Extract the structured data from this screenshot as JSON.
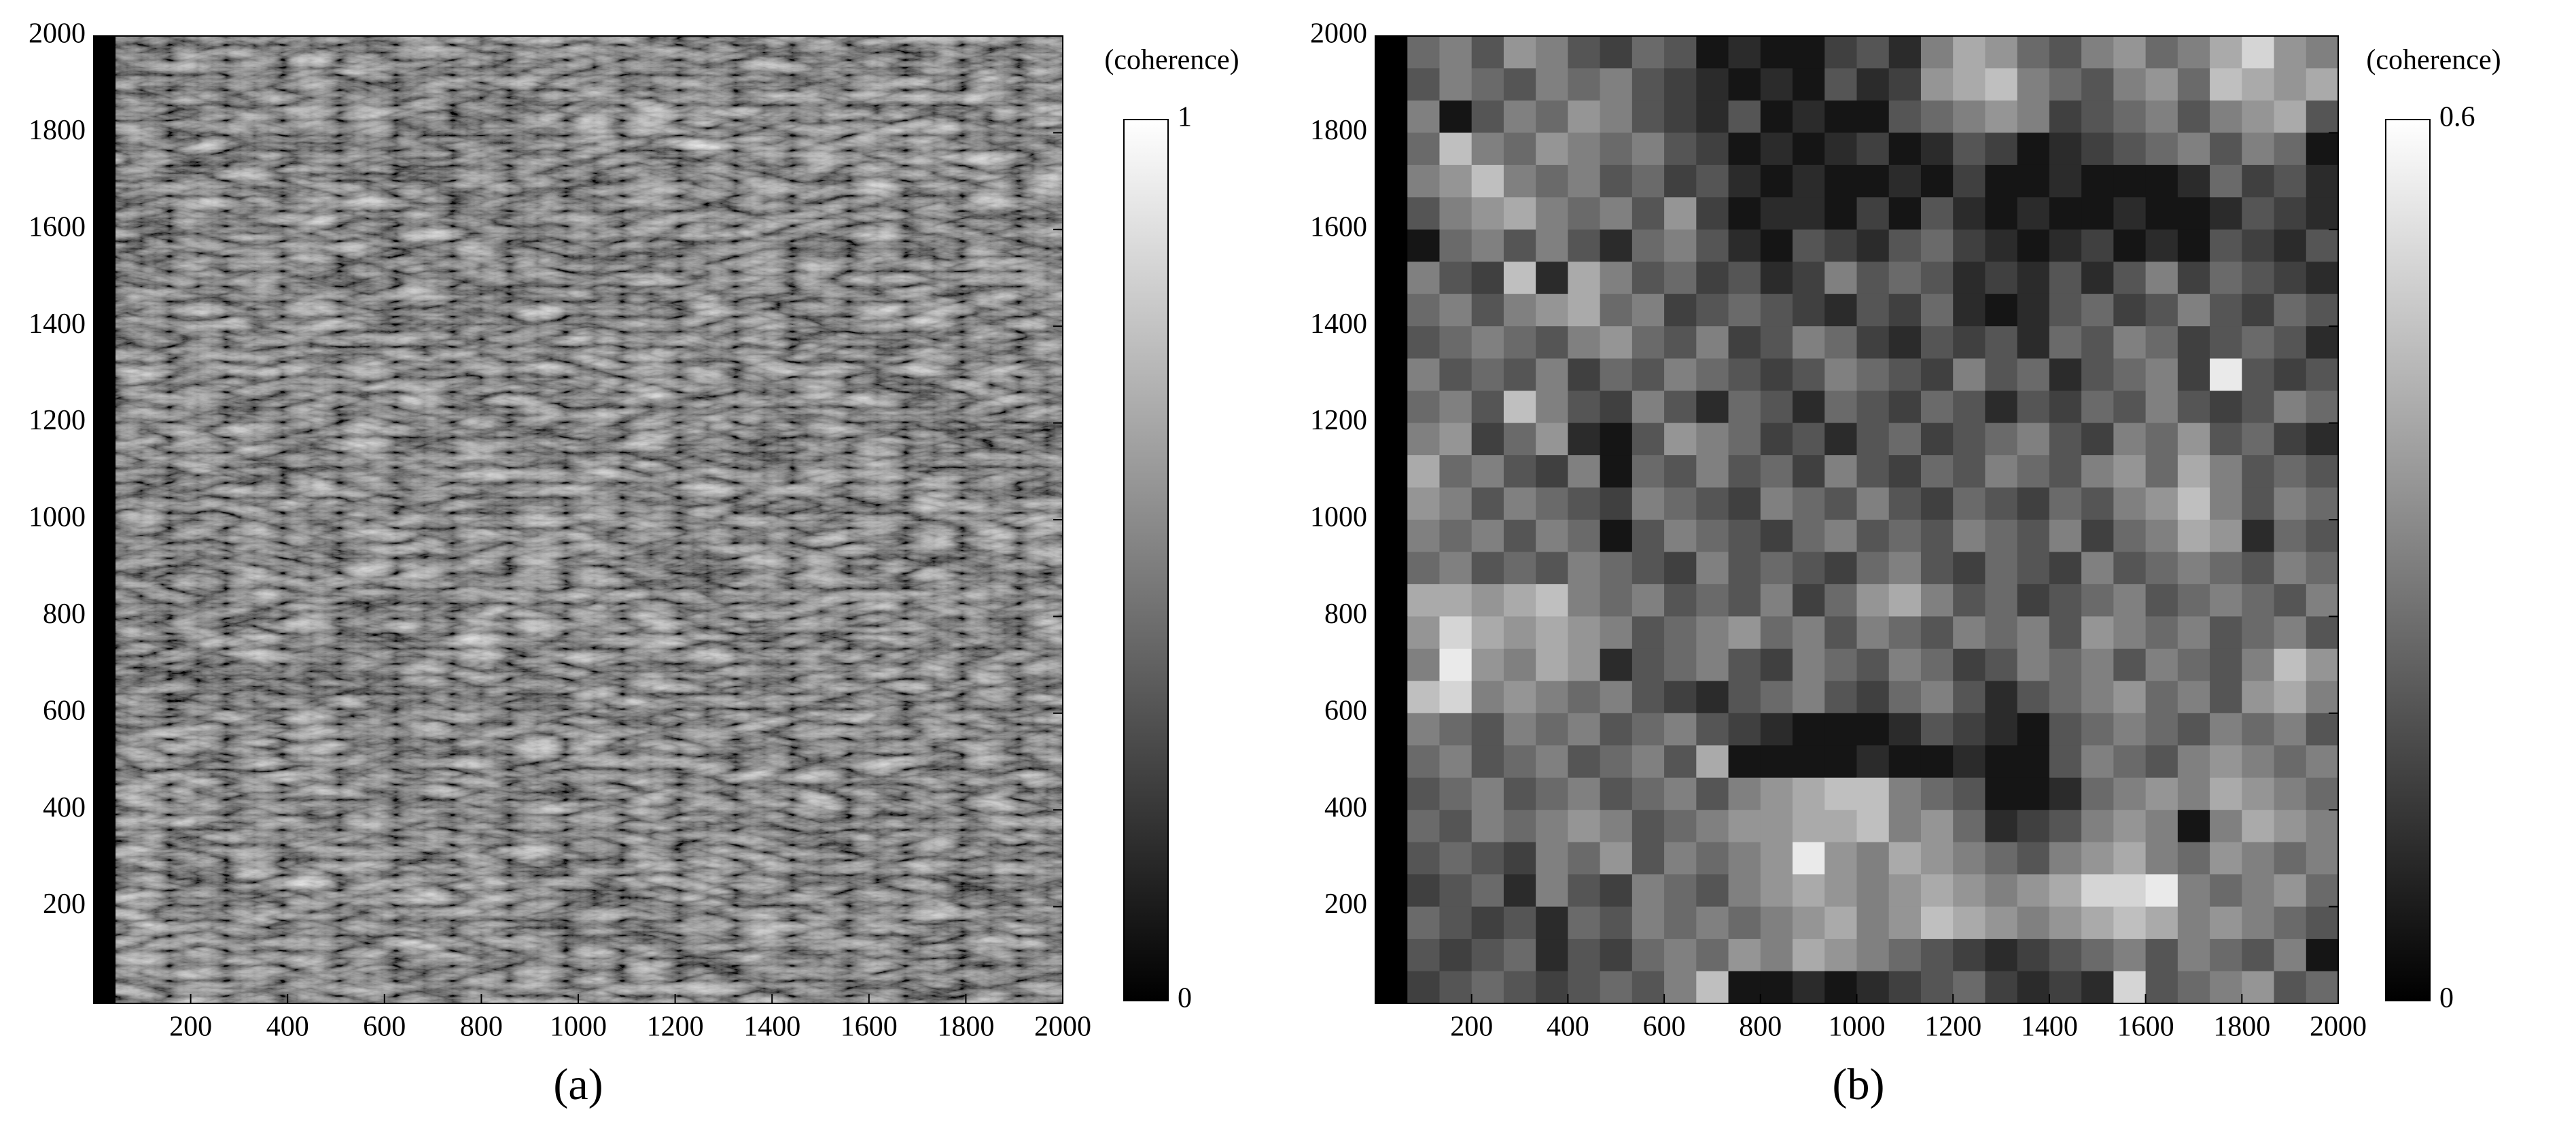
{
  "chart_data": [
    {
      "type": "image",
      "colormap": "gray",
      "colorbar_label": "(coherence)",
      "clim": [
        0,
        1
      ],
      "cticks": [
        0,
        1
      ],
      "xlim": [
        0,
        2000
      ],
      "ylim": [
        0,
        2000
      ],
      "xticks": [
        200,
        400,
        600,
        800,
        1000,
        1200,
        1400,
        1600,
        1800,
        2000
      ],
      "yticks": [
        200,
        400,
        600,
        800,
        1000,
        1200,
        1400,
        1600,
        1800,
        2000
      ],
      "caption": "(a)"
    },
    {
      "type": "heatmap",
      "colormap": "gray",
      "colorbar_label": "(coherence)",
      "clim": [
        0,
        0.6
      ],
      "cticks": [
        0,
        0.6
      ],
      "xlim": [
        0,
        2000
      ],
      "ylim": [
        0,
        2000
      ],
      "xticks": [
        200,
        400,
        600,
        800,
        1000,
        1200,
        1400,
        1600,
        1800,
        2000
      ],
      "yticks": [
        200,
        400,
        600,
        800,
        1000,
        1200,
        1400,
        1600,
        1800,
        2000
      ],
      "caption": "(b)",
      "values": [
        [
          0,
          0.25,
          0.3,
          0.2,
          0.35,
          0.3,
          0.2,
          0.15,
          0.25,
          0.2,
          0.05,
          0.1,
          0.05,
          0.05,
          0.15,
          0.2,
          0.1,
          0.3,
          0.4,
          0.35,
          0.25,
          0.2,
          0.3,
          0.35,
          0.25,
          0.3,
          0.4,
          0.5,
          0.35,
          0.3
        ],
        [
          0,
          0.2,
          0.3,
          0.25,
          0.2,
          0.3,
          0.25,
          0.3,
          0.2,
          0.15,
          0.1,
          0.05,
          0.1,
          0.05,
          0.2,
          0.1,
          0.15,
          0.35,
          0.4,
          0.45,
          0.3,
          0.25,
          0.2,
          0.3,
          0.35,
          0.25,
          0.45,
          0.4,
          0.35,
          0.4
        ],
        [
          0,
          0.3,
          0.05,
          0.2,
          0.3,
          0.25,
          0.35,
          0.3,
          0.2,
          0.15,
          0.1,
          0.2,
          0.05,
          0.1,
          0.05,
          0.05,
          0.2,
          0.25,
          0.3,
          0.35,
          0.3,
          0.15,
          0.2,
          0.25,
          0.3,
          0.2,
          0.3,
          0.35,
          0.4,
          0.2
        ],
        [
          0,
          0.25,
          0.45,
          0.3,
          0.25,
          0.35,
          0.3,
          0.25,
          0.3,
          0.2,
          0.15,
          0.05,
          0.1,
          0.05,
          0.1,
          0.15,
          0.05,
          0.1,
          0.2,
          0.15,
          0.05,
          0.1,
          0.15,
          0.2,
          0.25,
          0.3,
          0.2,
          0.3,
          0.25,
          0.05
        ],
        [
          0,
          0.3,
          0.35,
          0.45,
          0.3,
          0.25,
          0.3,
          0.2,
          0.25,
          0.15,
          0.2,
          0.1,
          0.05,
          0.1,
          0.05,
          0.05,
          0.1,
          0.05,
          0.15,
          0.05,
          0.05,
          0.1,
          0.05,
          0.05,
          0.05,
          0.1,
          0.25,
          0.15,
          0.2,
          0.1
        ],
        [
          0,
          0.2,
          0.3,
          0.35,
          0.4,
          0.3,
          0.25,
          0.3,
          0.2,
          0.35,
          0.15,
          0.05,
          0.1,
          0.1,
          0.05,
          0.15,
          0.05,
          0.2,
          0.1,
          0.05,
          0.1,
          0.05,
          0.05,
          0.1,
          0.05,
          0.05,
          0.1,
          0.2,
          0.15,
          0.1
        ],
        [
          0,
          0.05,
          0.25,
          0.3,
          0.2,
          0.3,
          0.2,
          0.1,
          0.25,
          0.3,
          0.2,
          0.1,
          0.05,
          0.2,
          0.15,
          0.1,
          0.2,
          0.25,
          0.15,
          0.1,
          0.05,
          0.1,
          0.15,
          0.05,
          0.1,
          0.05,
          0.2,
          0.15,
          0.1,
          0.2
        ],
        [
          0,
          0.3,
          0.2,
          0.15,
          0.45,
          0.1,
          0.4,
          0.3,
          0.2,
          0.25,
          0.15,
          0.2,
          0.1,
          0.15,
          0.3,
          0.2,
          0.25,
          0.2,
          0.1,
          0.15,
          0.1,
          0.2,
          0.1,
          0.2,
          0.3,
          0.15,
          0.25,
          0.2,
          0.15,
          0.1
        ],
        [
          0,
          0.25,
          0.3,
          0.2,
          0.3,
          0.35,
          0.4,
          0.25,
          0.3,
          0.15,
          0.2,
          0.25,
          0.2,
          0.15,
          0.1,
          0.2,
          0.15,
          0.25,
          0.1,
          0.05,
          0.1,
          0.2,
          0.25,
          0.15,
          0.2,
          0.3,
          0.2,
          0.15,
          0.25,
          0.2
        ],
        [
          0,
          0.2,
          0.25,
          0.3,
          0.25,
          0.2,
          0.3,
          0.35,
          0.25,
          0.2,
          0.3,
          0.15,
          0.2,
          0.3,
          0.25,
          0.15,
          0.1,
          0.2,
          0.15,
          0.2,
          0.1,
          0.25,
          0.2,
          0.3,
          0.25,
          0.15,
          0.2,
          0.25,
          0.2,
          0.1
        ],
        [
          0,
          0.3,
          0.2,
          0.25,
          0.2,
          0.3,
          0.15,
          0.25,
          0.2,
          0.3,
          0.25,
          0.2,
          0.15,
          0.2,
          0.3,
          0.25,
          0.2,
          0.15,
          0.3,
          0.2,
          0.25,
          0.1,
          0.2,
          0.25,
          0.3,
          0.15,
          0.55,
          0.2,
          0.15,
          0.2
        ],
        [
          0,
          0.25,
          0.3,
          0.2,
          0.45,
          0.3,
          0.2,
          0.15,
          0.3,
          0.2,
          0.1,
          0.25,
          0.2,
          0.1,
          0.25,
          0.2,
          0.15,
          0.25,
          0.2,
          0.1,
          0.2,
          0.15,
          0.25,
          0.2,
          0.3,
          0.2,
          0.15,
          0.2,
          0.3,
          0.25
        ],
        [
          0,
          0.3,
          0.35,
          0.15,
          0.25,
          0.35,
          0.1,
          0.05,
          0.2,
          0.35,
          0.3,
          0.25,
          0.15,
          0.2,
          0.1,
          0.2,
          0.25,
          0.15,
          0.2,
          0.25,
          0.3,
          0.2,
          0.15,
          0.3,
          0.25,
          0.35,
          0.2,
          0.25,
          0.15,
          0.1
        ],
        [
          0,
          0.4,
          0.25,
          0.3,
          0.2,
          0.15,
          0.3,
          0.05,
          0.25,
          0.2,
          0.3,
          0.2,
          0.25,
          0.15,
          0.3,
          0.2,
          0.15,
          0.25,
          0.2,
          0.3,
          0.25,
          0.2,
          0.3,
          0.35,
          0.25,
          0.4,
          0.3,
          0.2,
          0.25,
          0.2
        ],
        [
          0,
          0.35,
          0.3,
          0.2,
          0.3,
          0.25,
          0.2,
          0.15,
          0.3,
          0.25,
          0.2,
          0.15,
          0.3,
          0.25,
          0.2,
          0.3,
          0.2,
          0.15,
          0.25,
          0.2,
          0.15,
          0.25,
          0.2,
          0.3,
          0.35,
          0.45,
          0.3,
          0.2,
          0.3,
          0.25
        ],
        [
          0,
          0.3,
          0.25,
          0.3,
          0.2,
          0.3,
          0.25,
          0.05,
          0.2,
          0.3,
          0.25,
          0.2,
          0.15,
          0.25,
          0.3,
          0.2,
          0.25,
          0.2,
          0.3,
          0.25,
          0.2,
          0.3,
          0.15,
          0.25,
          0.3,
          0.4,
          0.35,
          0.1,
          0.25,
          0.2
        ],
        [
          0,
          0.25,
          0.3,
          0.2,
          0.25,
          0.2,
          0.3,
          0.25,
          0.2,
          0.15,
          0.3,
          0.2,
          0.25,
          0.2,
          0.15,
          0.25,
          0.3,
          0.2,
          0.15,
          0.25,
          0.2,
          0.15,
          0.3,
          0.2,
          0.25,
          0.3,
          0.25,
          0.2,
          0.3,
          0.25
        ],
        [
          0,
          0.4,
          0.4,
          0.35,
          0.4,
          0.45,
          0.3,
          0.25,
          0.3,
          0.2,
          0.25,
          0.2,
          0.3,
          0.15,
          0.25,
          0.35,
          0.4,
          0.3,
          0.2,
          0.25,
          0.15,
          0.2,
          0.25,
          0.3,
          0.2,
          0.25,
          0.3,
          0.25,
          0.2,
          0.3
        ],
        [
          0,
          0.35,
          0.5,
          0.4,
          0.35,
          0.4,
          0.35,
          0.3,
          0.2,
          0.25,
          0.3,
          0.35,
          0.25,
          0.3,
          0.2,
          0.3,
          0.25,
          0.2,
          0.3,
          0.25,
          0.3,
          0.2,
          0.35,
          0.3,
          0.25,
          0.3,
          0.2,
          0.25,
          0.3,
          0.2
        ],
        [
          0,
          0.3,
          0.55,
          0.35,
          0.3,
          0.4,
          0.35,
          0.1,
          0.2,
          0.25,
          0.3,
          0.2,
          0.15,
          0.3,
          0.25,
          0.2,
          0.3,
          0.25,
          0.15,
          0.2,
          0.3,
          0.25,
          0.3,
          0.2,
          0.3,
          0.25,
          0.2,
          0.3,
          0.45,
          0.35
        ],
        [
          0,
          0.45,
          0.5,
          0.3,
          0.35,
          0.3,
          0.25,
          0.3,
          0.2,
          0.15,
          0.1,
          0.2,
          0.25,
          0.3,
          0.2,
          0.15,
          0.25,
          0.3,
          0.2,
          0.1,
          0.2,
          0.25,
          0.3,
          0.35,
          0.25,
          0.3,
          0.2,
          0.35,
          0.4,
          0.3
        ],
        [
          0,
          0.3,
          0.25,
          0.2,
          0.3,
          0.25,
          0.3,
          0.2,
          0.25,
          0.3,
          0.2,
          0.15,
          0.1,
          0.05,
          0.05,
          0.05,
          0.1,
          0.2,
          0.15,
          0.1,
          0.05,
          0.2,
          0.25,
          0.3,
          0.25,
          0.2,
          0.3,
          0.25,
          0.3,
          0.2
        ],
        [
          0,
          0.25,
          0.3,
          0.2,
          0.25,
          0.3,
          0.2,
          0.25,
          0.3,
          0.2,
          0.4,
          0.05,
          0.05,
          0.05,
          0.05,
          0.1,
          0.05,
          0.05,
          0.1,
          0.05,
          0.05,
          0.2,
          0.3,
          0.25,
          0.2,
          0.3,
          0.35,
          0.3,
          0.25,
          0.3
        ],
        [
          0,
          0.2,
          0.25,
          0.3,
          0.2,
          0.25,
          0.3,
          0.2,
          0.25,
          0.3,
          0.2,
          0.3,
          0.35,
          0.4,
          0.45,
          0.45,
          0.3,
          0.25,
          0.2,
          0.05,
          0.05,
          0.1,
          0.25,
          0.3,
          0.35,
          0.3,
          0.4,
          0.35,
          0.3,
          0.25
        ],
        [
          0,
          0.25,
          0.2,
          0.3,
          0.25,
          0.3,
          0.35,
          0.3,
          0.2,
          0.25,
          0.3,
          0.35,
          0.35,
          0.4,
          0.4,
          0.45,
          0.3,
          0.35,
          0.25,
          0.1,
          0.15,
          0.2,
          0.3,
          0.35,
          0.3,
          0.05,
          0.3,
          0.4,
          0.35,
          0.3
        ],
        [
          0,
          0.2,
          0.25,
          0.2,
          0.15,
          0.3,
          0.25,
          0.35,
          0.2,
          0.3,
          0.25,
          0.3,
          0.35,
          0.55,
          0.35,
          0.3,
          0.4,
          0.35,
          0.3,
          0.25,
          0.2,
          0.3,
          0.35,
          0.4,
          0.3,
          0.25,
          0.35,
          0.3,
          0.25,
          0.3
        ],
        [
          0,
          0.15,
          0.2,
          0.25,
          0.1,
          0.3,
          0.2,
          0.15,
          0.3,
          0.25,
          0.2,
          0.3,
          0.35,
          0.4,
          0.35,
          0.3,
          0.35,
          0.4,
          0.35,
          0.3,
          0.35,
          0.4,
          0.5,
          0.5,
          0.55,
          0.3,
          0.25,
          0.3,
          0.35,
          0.25
        ],
        [
          0,
          0.25,
          0.2,
          0.15,
          0.2,
          0.1,
          0.25,
          0.2,
          0.3,
          0.25,
          0.3,
          0.25,
          0.3,
          0.35,
          0.4,
          0.3,
          0.35,
          0.45,
          0.4,
          0.35,
          0.3,
          0.35,
          0.4,
          0.45,
          0.4,
          0.3,
          0.35,
          0.3,
          0.25,
          0.2
        ],
        [
          0,
          0.2,
          0.15,
          0.2,
          0.25,
          0.1,
          0.2,
          0.15,
          0.25,
          0.3,
          0.25,
          0.35,
          0.3,
          0.4,
          0.35,
          0.3,
          0.25,
          0.2,
          0.15,
          0.1,
          0.15,
          0.2,
          0.25,
          0.3,
          0.2,
          0.3,
          0.25,
          0.2,
          0.3,
          0.05
        ],
        [
          0,
          0.15,
          0.2,
          0.25,
          0.2,
          0.15,
          0.2,
          0.25,
          0.2,
          0.3,
          0.45,
          0.05,
          0.05,
          0.1,
          0.05,
          0.1,
          0.15,
          0.2,
          0.25,
          0.15,
          0.1,
          0.15,
          0.1,
          0.5,
          0.2,
          0.25,
          0.3,
          0.35,
          0.2,
          0.25
        ]
      ]
    }
  ]
}
